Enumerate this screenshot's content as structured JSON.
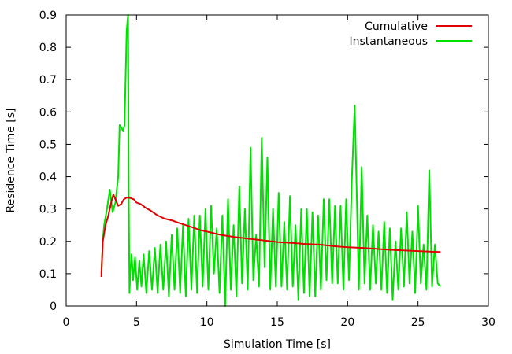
{
  "chart_data": {
    "type": "line",
    "title": "",
    "xlabel": "Simulation Time [s]",
    "ylabel": "Residence Time [s]",
    "xlim": [
      0,
      30
    ],
    "ylim": [
      0,
      0.9
    ],
    "xticks": [
      0,
      5,
      10,
      15,
      20,
      25,
      30
    ],
    "yticks": [
      0,
      0.1,
      0.2,
      0.3,
      0.4,
      0.5,
      0.6,
      0.7,
      0.8,
      0.9
    ],
    "xtick_labels": [
      "0",
      "5",
      "10",
      "15",
      "20",
      "25",
      "30"
    ],
    "ytick_labels": [
      "0",
      "0.1",
      "0.2",
      "0.3",
      "0.4",
      "0.5",
      "0.6",
      "0.7",
      "0.8",
      "0.9"
    ],
    "grid": false,
    "legend_position": "top-right",
    "series": [
      {
        "name": "Cumulative",
        "color": "#e00000",
        "x": [
          2.5,
          2.6,
          2.8,
          3.0,
          3.2,
          3.35,
          3.5,
          3.7,
          3.9,
          4.1,
          4.3,
          4.5,
          4.8,
          5.0,
          5.3,
          5.6,
          6.0,
          6.5,
          7.0,
          7.5,
          8.0,
          8.5,
          9.0,
          9.5,
          10.0,
          11.0,
          12.0,
          13.0,
          14.0,
          15.0,
          16.0,
          17.0,
          18.0,
          19.0,
          20.0,
          21.0,
          22.0,
          23.0,
          24.0,
          25.0,
          26.0,
          26.6
        ],
        "y": [
          0.09,
          0.2,
          0.25,
          0.28,
          0.32,
          0.345,
          0.33,
          0.31,
          0.315,
          0.33,
          0.335,
          0.335,
          0.33,
          0.32,
          0.315,
          0.305,
          0.295,
          0.28,
          0.27,
          0.265,
          0.257,
          0.25,
          0.243,
          0.235,
          0.23,
          0.22,
          0.213,
          0.208,
          0.203,
          0.198,
          0.195,
          0.192,
          0.19,
          0.185,
          0.182,
          0.18,
          0.177,
          0.174,
          0.172,
          0.17,
          0.168,
          0.167
        ]
      },
      {
        "name": "Instantaneous",
        "color": "#00e000",
        "x": [
          2.5,
          2.6,
          2.7,
          2.9,
          3.1,
          3.3,
          3.5,
          3.7,
          3.8,
          3.95,
          4.05,
          4.15,
          4.3,
          4.4,
          4.45,
          4.5,
          4.55,
          4.65,
          4.75,
          4.9,
          5.05,
          5.2,
          5.35,
          5.5,
          5.7,
          5.9,
          6.1,
          6.3,
          6.5,
          6.7,
          6.9,
          7.1,
          7.3,
          7.5,
          7.7,
          7.9,
          8.1,
          8.3,
          8.5,
          8.7,
          8.9,
          9.1,
          9.3,
          9.5,
          9.7,
          9.9,
          10.1,
          10.3,
          10.5,
          10.7,
          10.9,
          11.1,
          11.3,
          11.5,
          11.7,
          11.9,
          12.1,
          12.3,
          12.5,
          12.7,
          12.9,
          13.1,
          13.3,
          13.5,
          13.7,
          13.9,
          14.1,
          14.3,
          14.5,
          14.7,
          14.9,
          15.1,
          15.3,
          15.5,
          15.7,
          15.9,
          16.1,
          16.3,
          16.5,
          16.7,
          16.9,
          17.1,
          17.3,
          17.5,
          17.7,
          17.9,
          18.1,
          18.3,
          18.5,
          18.7,
          18.9,
          19.1,
          19.3,
          19.5,
          19.7,
          19.9,
          20.1,
          20.3,
          20.5,
          20.65,
          20.8,
          21.0,
          21.2,
          21.4,
          21.6,
          21.8,
          22.0,
          22.2,
          22.4,
          22.6,
          22.8,
          23.0,
          23.2,
          23.4,
          23.6,
          23.8,
          24.0,
          24.2,
          24.4,
          24.6,
          24.8,
          25.0,
          25.2,
          25.4,
          25.6,
          25.8,
          26.0,
          26.2,
          26.4,
          26.6
        ],
        "y": [
          0.1,
          0.2,
          0.25,
          0.3,
          0.36,
          0.29,
          0.32,
          0.4,
          0.56,
          0.55,
          0.54,
          0.56,
          0.85,
          0.9,
          0.32,
          0.04,
          0.1,
          0.16,
          0.08,
          0.15,
          0.05,
          0.14,
          0.06,
          0.16,
          0.04,
          0.17,
          0.05,
          0.18,
          0.04,
          0.19,
          0.05,
          0.2,
          0.03,
          0.22,
          0.05,
          0.24,
          0.04,
          0.25,
          0.03,
          0.27,
          0.05,
          0.28,
          0.04,
          0.28,
          0.06,
          0.3,
          0.05,
          0.31,
          0.1,
          0.24,
          0.04,
          0.28,
          0.0,
          0.33,
          0.05,
          0.25,
          0.03,
          0.37,
          0.07,
          0.3,
          0.05,
          0.49,
          0.08,
          0.22,
          0.06,
          0.52,
          0.12,
          0.46,
          0.05,
          0.3,
          0.06,
          0.35,
          0.06,
          0.26,
          0.05,
          0.34,
          0.06,
          0.25,
          0.02,
          0.3,
          0.04,
          0.3,
          0.03,
          0.29,
          0.03,
          0.28,
          0.05,
          0.33,
          0.08,
          0.33,
          0.07,
          0.31,
          0.07,
          0.31,
          0.05,
          0.33,
          0.08,
          0.39,
          0.62,
          0.35,
          0.05,
          0.43,
          0.07,
          0.28,
          0.05,
          0.25,
          0.07,
          0.23,
          0.05,
          0.26,
          0.04,
          0.24,
          0.02,
          0.2,
          0.05,
          0.24,
          0.06,
          0.29,
          0.07,
          0.23,
          0.04,
          0.31,
          0.07,
          0.19,
          0.05,
          0.42,
          0.06,
          0.19,
          0.07,
          0.06
        ]
      }
    ]
  }
}
